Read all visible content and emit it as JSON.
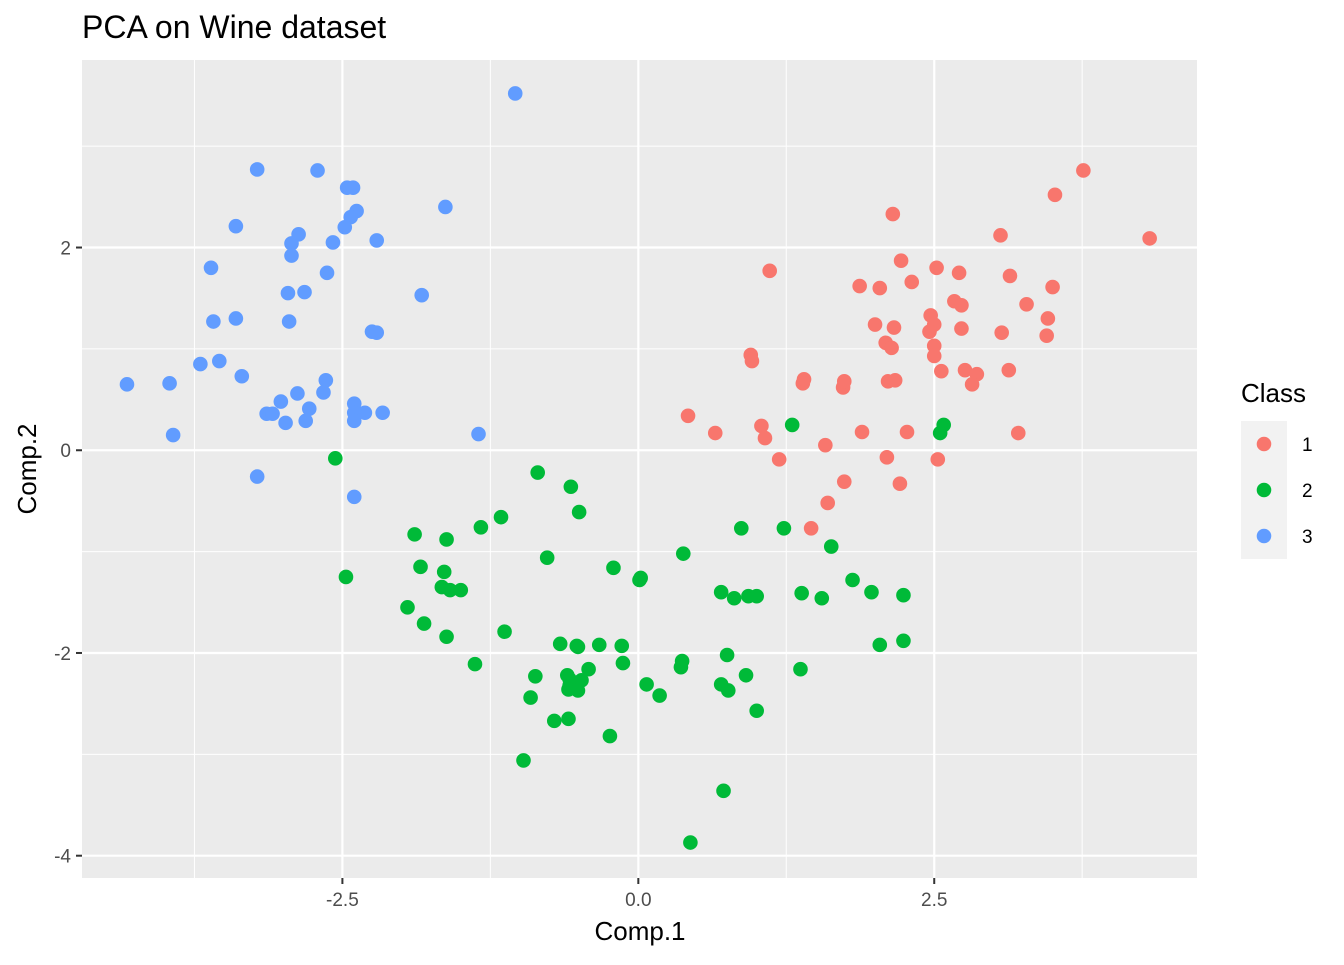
{
  "chart_data": {
    "type": "scatter",
    "title": "PCA on Wine dataset",
    "xlabel": "Comp.1",
    "ylabel": "Comp.2",
    "xlim": [
      -4.7,
      4.72
    ],
    "ylim": [
      -4.22,
      3.85
    ],
    "x_ticks": [
      -2.5,
      0.0,
      2.5
    ],
    "x_tick_labels": [
      "-2.5",
      "0.0",
      "2.5"
    ],
    "y_ticks": [
      -4,
      -2,
      0,
      2
    ],
    "y_tick_labels": [
      "-4",
      "-2",
      "0",
      "2"
    ],
    "grid": true,
    "legend": {
      "title": "Class",
      "position": "right"
    },
    "series": [
      {
        "name": "1",
        "color": "#F8766D",
        "points": [
          [
            3.76,
            2.76
          ],
          [
            4.32,
            2.09
          ],
          [
            3.52,
            2.52
          ],
          [
            2.15,
            2.33
          ],
          [
            3.06,
            2.12
          ],
          [
            2.22,
            1.87
          ],
          [
            2.52,
            1.8
          ],
          [
            2.71,
            1.75
          ],
          [
            3.14,
            1.72
          ],
          [
            1.11,
            1.77
          ],
          [
            2.31,
            1.66
          ],
          [
            1.87,
            1.62
          ],
          [
            2.04,
            1.6
          ],
          [
            3.5,
            1.61
          ],
          [
            3.28,
            1.44
          ],
          [
            2.67,
            1.47
          ],
          [
            2.73,
            1.43
          ],
          [
            2.47,
            1.33
          ],
          [
            3.46,
            1.3
          ],
          [
            2.0,
            1.24
          ],
          [
            2.16,
            1.21
          ],
          [
            2.5,
            1.24
          ],
          [
            2.46,
            1.17
          ],
          [
            2.73,
            1.2
          ],
          [
            3.07,
            1.16
          ],
          [
            3.45,
            1.13
          ],
          [
            2.09,
            1.06
          ],
          [
            2.14,
            1.01
          ],
          [
            2.5,
            1.03
          ],
          [
            0.95,
            0.94
          ],
          [
            0.96,
            0.88
          ],
          [
            2.5,
            0.93
          ],
          [
            2.56,
            0.78
          ],
          [
            2.76,
            0.79
          ],
          [
            2.86,
            0.75
          ],
          [
            3.13,
            0.79
          ],
          [
            2.82,
            0.65
          ],
          [
            1.39,
            0.66
          ],
          [
            1.4,
            0.7
          ],
          [
            1.73,
            0.62
          ],
          [
            1.74,
            0.68
          ],
          [
            2.11,
            0.68
          ],
          [
            2.17,
            0.69
          ],
          [
            0.42,
            0.34
          ],
          [
            0.65,
            0.17
          ],
          [
            1.04,
            0.24
          ],
          [
            1.07,
            0.12
          ],
          [
            1.89,
            0.18
          ],
          [
            2.27,
            0.18
          ],
          [
            3.21,
            0.17
          ],
          [
            1.58,
            0.05
          ],
          [
            1.19,
            -0.09
          ],
          [
            2.1,
            -0.07
          ],
          [
            2.53,
            -0.09
          ],
          [
            1.74,
            -0.31
          ],
          [
            2.21,
            -0.33
          ],
          [
            1.6,
            -0.52
          ],
          [
            1.46,
            -0.77
          ]
        ]
      },
      {
        "name": "2",
        "color": "#00BA38",
        "points": [
          [
            1.3,
            0.25
          ],
          [
            2.58,
            0.25
          ],
          [
            2.55,
            0.17
          ],
          [
            -2.56,
            -0.08
          ],
          [
            -0.85,
            -0.22
          ],
          [
            -0.57,
            -0.36
          ],
          [
            -1.16,
            -0.66
          ],
          [
            -0.5,
            -0.61
          ],
          [
            -1.89,
            -0.83
          ],
          [
            -1.33,
            -0.76
          ],
          [
            0.87,
            -0.77
          ],
          [
            1.23,
            -0.77
          ],
          [
            -1.62,
            -0.88
          ],
          [
            1.63,
            -0.95
          ],
          [
            -0.77,
            -1.06
          ],
          [
            0.38,
            -1.02
          ],
          [
            -1.84,
            -1.15
          ],
          [
            -0.21,
            -1.16
          ],
          [
            -1.64,
            -1.2
          ],
          [
            0.02,
            -1.26
          ],
          [
            0.01,
            -1.28
          ],
          [
            -2.47,
            -1.25
          ],
          [
            1.81,
            -1.28
          ],
          [
            -1.66,
            -1.35
          ],
          [
            -1.59,
            -1.38
          ],
          [
            -1.5,
            -1.38
          ],
          [
            0.7,
            -1.4
          ],
          [
            1.38,
            -1.41
          ],
          [
            0.81,
            -1.46
          ],
          [
            0.93,
            -1.44
          ],
          [
            1.0,
            -1.44
          ],
          [
            1.55,
            -1.46
          ],
          [
            1.97,
            -1.4
          ],
          [
            2.24,
            -1.43
          ],
          [
            -1.95,
            -1.55
          ],
          [
            -1.81,
            -1.71
          ],
          [
            -1.62,
            -1.84
          ],
          [
            -1.13,
            -1.79
          ],
          [
            -0.66,
            -1.91
          ],
          [
            -0.52,
            -1.93
          ],
          [
            -0.33,
            -1.92
          ],
          [
            -0.51,
            -1.94
          ],
          [
            -0.14,
            -1.93
          ],
          [
            2.04,
            -1.92
          ],
          [
            2.24,
            -1.88
          ],
          [
            0.75,
            -2.02
          ],
          [
            -1.38,
            -2.11
          ],
          [
            -0.13,
            -2.1
          ],
          [
            0.37,
            -2.08
          ],
          [
            0.36,
            -2.14
          ],
          [
            -0.42,
            -2.16
          ],
          [
            1.37,
            -2.16
          ],
          [
            0.91,
            -2.22
          ],
          [
            -0.6,
            -2.22
          ],
          [
            -0.87,
            -2.23
          ],
          [
            -0.58,
            -2.26
          ],
          [
            -0.48,
            -2.27
          ],
          [
            -0.58,
            -2.32
          ],
          [
            0.07,
            -2.31
          ],
          [
            0.7,
            -2.31
          ],
          [
            -0.59,
            -2.36
          ],
          [
            -0.51,
            -2.37
          ],
          [
            0.76,
            -2.37
          ],
          [
            0.18,
            -2.42
          ],
          [
            -0.91,
            -2.44
          ],
          [
            1.0,
            -2.57
          ],
          [
            -0.59,
            -2.65
          ],
          [
            -0.71,
            -2.67
          ],
          [
            -0.24,
            -2.82
          ],
          [
            -0.97,
            -3.06
          ],
          [
            0.72,
            -3.36
          ],
          [
            0.44,
            -3.87
          ]
        ]
      },
      {
        "name": "3",
        "color": "#619CFF",
        "points": [
          [
            -1.04,
            3.52
          ],
          [
            -3.22,
            2.77
          ],
          [
            -2.71,
            2.76
          ],
          [
            -2.46,
            2.59
          ],
          [
            -2.41,
            2.59
          ],
          [
            -1.63,
            2.4
          ],
          [
            -2.38,
            2.36
          ],
          [
            -2.43,
            2.3
          ],
          [
            -2.48,
            2.2
          ],
          [
            -3.4,
            2.21
          ],
          [
            -2.87,
            2.13
          ],
          [
            -2.21,
            2.07
          ],
          [
            -2.93,
            2.04
          ],
          [
            -2.58,
            2.05
          ],
          [
            -2.93,
            1.92
          ],
          [
            -3.61,
            1.8
          ],
          [
            -2.63,
            1.75
          ],
          [
            -1.83,
            1.53
          ],
          [
            -2.96,
            1.55
          ],
          [
            -2.82,
            1.56
          ],
          [
            -3.59,
            1.27
          ],
          [
            -3.4,
            1.3
          ],
          [
            -2.95,
            1.27
          ],
          [
            -2.25,
            1.17
          ],
          [
            -2.21,
            1.16
          ],
          [
            -3.54,
            0.88
          ],
          [
            -3.7,
            0.85
          ],
          [
            -2.64,
            0.69
          ],
          [
            -4.32,
            0.65
          ],
          [
            -3.96,
            0.66
          ],
          [
            -3.35,
            0.73
          ],
          [
            -2.66,
            0.57
          ],
          [
            -2.88,
            0.56
          ],
          [
            -3.02,
            0.48
          ],
          [
            -2.4,
            0.46
          ],
          [
            -2.78,
            0.41
          ],
          [
            -2.31,
            0.37
          ],
          [
            -2.4,
            0.37
          ],
          [
            -2.16,
            0.37
          ],
          [
            -3.14,
            0.36
          ],
          [
            -3.09,
            0.36
          ],
          [
            -2.81,
            0.29
          ],
          [
            -2.98,
            0.27
          ],
          [
            -2.4,
            0.29
          ],
          [
            -3.93,
            0.15
          ],
          [
            -1.35,
            0.16
          ],
          [
            -3.22,
            -0.26
          ],
          [
            -2.4,
            -0.46
          ]
        ]
      }
    ]
  }
}
